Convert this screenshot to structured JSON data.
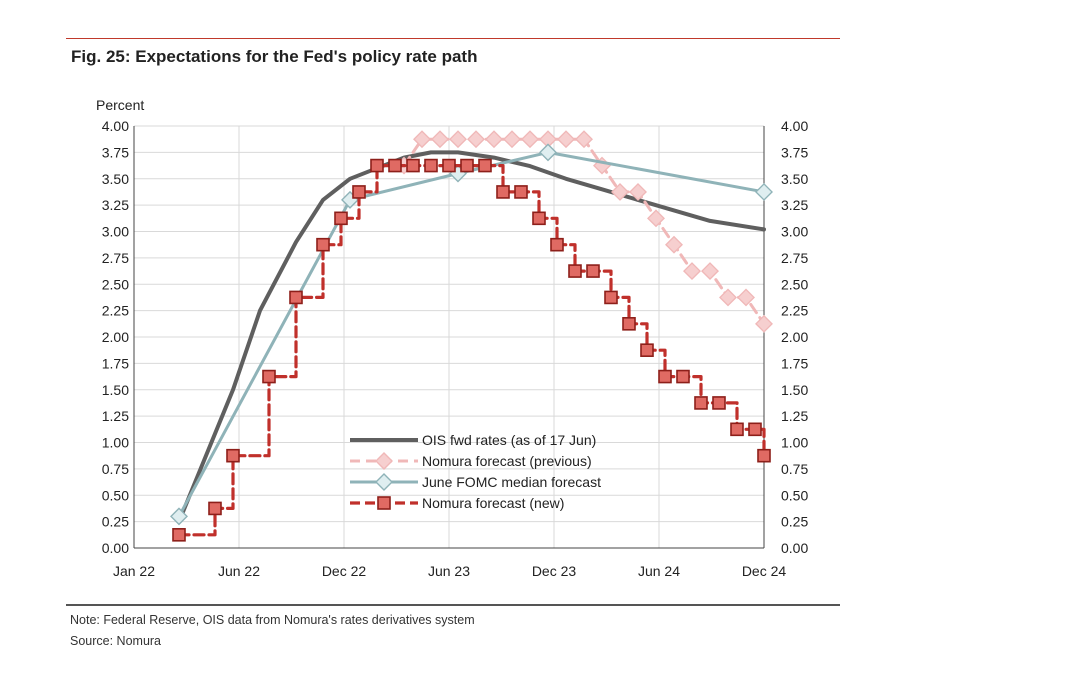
{
  "figure": {
    "title": "Fig. 25: Expectations for the Fed's policy rate path",
    "note": "Note: Federal Reserve, OIS data from Nomura's rates derivatives system",
    "source": "Source: Nomura"
  },
  "colors": {
    "rule_top": "#c0392b",
    "ois": "#5f5f5f",
    "nomura_prev": "#f0b8b8",
    "fomc": "#8fb3b8",
    "nomura_new": "#c0302b"
  },
  "chart_data": {
    "type": "line",
    "y_unit_label": "Percent",
    "x_ticks": [
      "Jan 22",
      "Jun 22",
      "Dec 22",
      "Jun 23",
      "Dec 23",
      "Jun 24",
      "Dec 24"
    ],
    "x_range": [
      0,
      35
    ],
    "ylim": [
      0,
      4
    ],
    "y_ticks": [
      "0.00",
      "0.25",
      "0.50",
      "0.75",
      "1.00",
      "1.25",
      "1.50",
      "1.75",
      "2.00",
      "2.25",
      "2.50",
      "2.75",
      "3.00",
      "3.25",
      "3.50",
      "3.75",
      "4.00"
    ],
    "grid": true,
    "legend_position": "lower-center",
    "series": [
      {
        "name": "OIS fwd rates (as of 17 Jun)",
        "style": "solid",
        "x": [
          2.5,
          5.5,
          7,
          9,
          10.5,
          12,
          13.5,
          15,
          16.5,
          18,
          20,
          22,
          24,
          26,
          28,
          30,
          32,
          35
        ],
        "y": [
          0.25,
          1.5,
          2.25,
          2.9,
          3.3,
          3.5,
          3.6,
          3.7,
          3.75,
          3.75,
          3.7,
          3.62,
          3.5,
          3.4,
          3.3,
          3.2,
          3.1,
          3.02
        ]
      },
      {
        "name": "Nomura forecast (previous)",
        "style": "dashed-diamond",
        "x": [
          15,
          16,
          17,
          18,
          19,
          20,
          21,
          22,
          23,
          24,
          25,
          26,
          27,
          28,
          29,
          30,
          31,
          32,
          33,
          34,
          35
        ],
        "y": [
          3.625,
          3.875,
          3.875,
          3.875,
          3.875,
          3.875,
          3.875,
          3.875,
          3.875,
          3.875,
          3.875,
          3.625,
          3.375,
          3.375,
          3.125,
          2.875,
          2.625,
          2.625,
          2.375,
          2.375,
          2.125
        ]
      },
      {
        "name": "June FOMC median forecast",
        "style": "solid-diamond",
        "x": [
          2.5,
          12,
          18,
          23,
          35
        ],
        "y": [
          0.3,
          3.3,
          3.55,
          3.75,
          3.375
        ]
      },
      {
        "name": "Nomura forecast (new)",
        "style": "dashed-square",
        "x": [
          2.5,
          4.5,
          5.5,
          7.5,
          9,
          10.5,
          11.5,
          12.5,
          13.5,
          14.5,
          15.5,
          16.5,
          17.5,
          18.5,
          19.5,
          20.5,
          21.5,
          22.5,
          23.5,
          24.5,
          25.5,
          26.5,
          27.5,
          28.5,
          29.5,
          30.5,
          31.5,
          32.5,
          33.5,
          34.5,
          35
        ],
        "y": [
          0.125,
          0.375,
          0.875,
          1.625,
          2.375,
          2.875,
          3.125,
          3.375,
          3.625,
          3.625,
          3.625,
          3.625,
          3.625,
          3.625,
          3.625,
          3.375,
          3.375,
          3.125,
          2.875,
          2.625,
          2.625,
          2.375,
          2.125,
          1.875,
          1.625,
          1.625,
          1.375,
          1.375,
          1.125,
          1.125,
          0.875
        ]
      }
    ]
  }
}
